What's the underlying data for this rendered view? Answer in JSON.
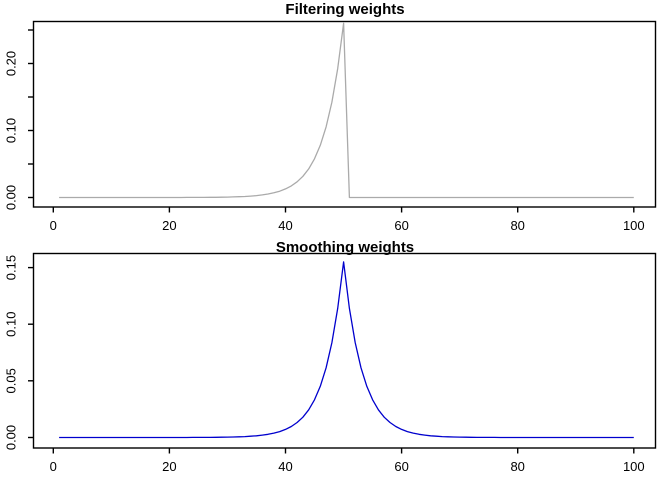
{
  "figure": {
    "background": "#ffffff",
    "axis_color": "#000000",
    "panel_count": 2
  },
  "chart_data": [
    {
      "type": "line",
      "title": "Filtering weights",
      "xlabel": "",
      "ylabel": "",
      "line_color": "#aaaaaa",
      "xlim": [
        -3,
        104
      ],
      "ylim": [
        -0.0104,
        0.2704
      ],
      "grid": false,
      "legend": "none",
      "x_start": 1,
      "x_step": 1,
      "x_tick_values": [
        0,
        20,
        40,
        60,
        80,
        100
      ],
      "x_tick_labels": [
        "0",
        "20",
        "40",
        "60",
        "80",
        "100"
      ],
      "y_tick_values": [
        0,
        0.05,
        0.1,
        0.15,
        0.2,
        0.25
      ],
      "y_tick_labels": [
        "0.00",
        "",
        "0.10",
        "",
        "0.20",
        ""
      ],
      "values": [
        0,
        0,
        0,
        0,
        0,
        0,
        0,
        0,
        0,
        0,
        0,
        0,
        0,
        1e-05,
        1e-05,
        1e-05,
        1e-05,
        2e-05,
        2e-05,
        3e-05,
        4e-05,
        6e-05,
        8e-05,
        0.0001,
        0.00014,
        0.00019,
        0.00026,
        0.00035,
        0.00047,
        0.00063,
        0.00085,
        0.00115,
        0.00156,
        0.0021,
        0.00284,
        0.00384,
        0.00519,
        0.00701,
        0.00947,
        0.0128,
        0.0173,
        0.02338,
        0.03159,
        0.04269,
        0.05769,
        0.07797,
        0.10536,
        0.14238,
        0.1924,
        0.26,
        0,
        0,
        0,
        0,
        0,
        0,
        0,
        0,
        0,
        0,
        0,
        0,
        0,
        0,
        0,
        0,
        0,
        0,
        0,
        0,
        0,
        0,
        0,
        0,
        0,
        0,
        0,
        0,
        0,
        0,
        0,
        0,
        0,
        0,
        0,
        0,
        0,
        0,
        0,
        0,
        0,
        0,
        0,
        0,
        0,
        0,
        0,
        0,
        0,
        0
      ]
    },
    {
      "type": "line",
      "title": "Smoothing weights",
      "xlabel": "",
      "ylabel": "",
      "line_color": "#0000cd",
      "xlim": [
        -3,
        104
      ],
      "ylim": [
        -0.0062,
        0.1618
      ],
      "grid": false,
      "legend": "none",
      "x_start": 1,
      "x_step": 1,
      "x_tick_values": [
        0,
        20,
        40,
        60,
        80,
        100
      ],
      "x_tick_labels": [
        "0",
        "20",
        "40",
        "60",
        "80",
        "100"
      ],
      "y_tick_values": [
        0,
        0.05,
        0.1,
        0.15
      ],
      "y_tick_labels": [
        "0.00",
        "0.05",
        "0.10",
        "0.15"
      ],
      "values": [
        0,
        0,
        0,
        0,
        0,
        0,
        0,
        0,
        0,
        0,
        0,
        0,
        0,
        0,
        0,
        0,
        1e-05,
        1e-05,
        1e-05,
        2e-05,
        2e-05,
        3e-05,
        4e-05,
        5e-05,
        7e-05,
        0.0001,
        0.00013,
        0.00018,
        0.00024,
        0.00033,
        0.00045,
        0.00061,
        0.00083,
        0.00112,
        0.00153,
        0.00208,
        0.00283,
        0.00385,
        0.00524,
        0.00713,
        0.0097,
        0.0132,
        0.01796,
        0.02443,
        0.03324,
        0.04522,
        0.06153,
        0.08373,
        0.11393,
        0.155,
        0.11393,
        0.08373,
        0.06153,
        0.04522,
        0.03324,
        0.02443,
        0.01796,
        0.0132,
        0.0097,
        0.00713,
        0.00524,
        0.00385,
        0.00283,
        0.00208,
        0.00153,
        0.00112,
        0.00083,
        0.00061,
        0.00045,
        0.00033,
        0.00024,
        0.00018,
        0.00013,
        0.0001,
        7e-05,
        5e-05,
        4e-05,
        3e-05,
        2e-05,
        2e-05,
        1e-05,
        1e-05,
        1e-05,
        0,
        0,
        0,
        0,
        0,
        0,
        0,
        0,
        0,
        0,
        0,
        0,
        0,
        0,
        0,
        0,
        0
      ]
    }
  ]
}
